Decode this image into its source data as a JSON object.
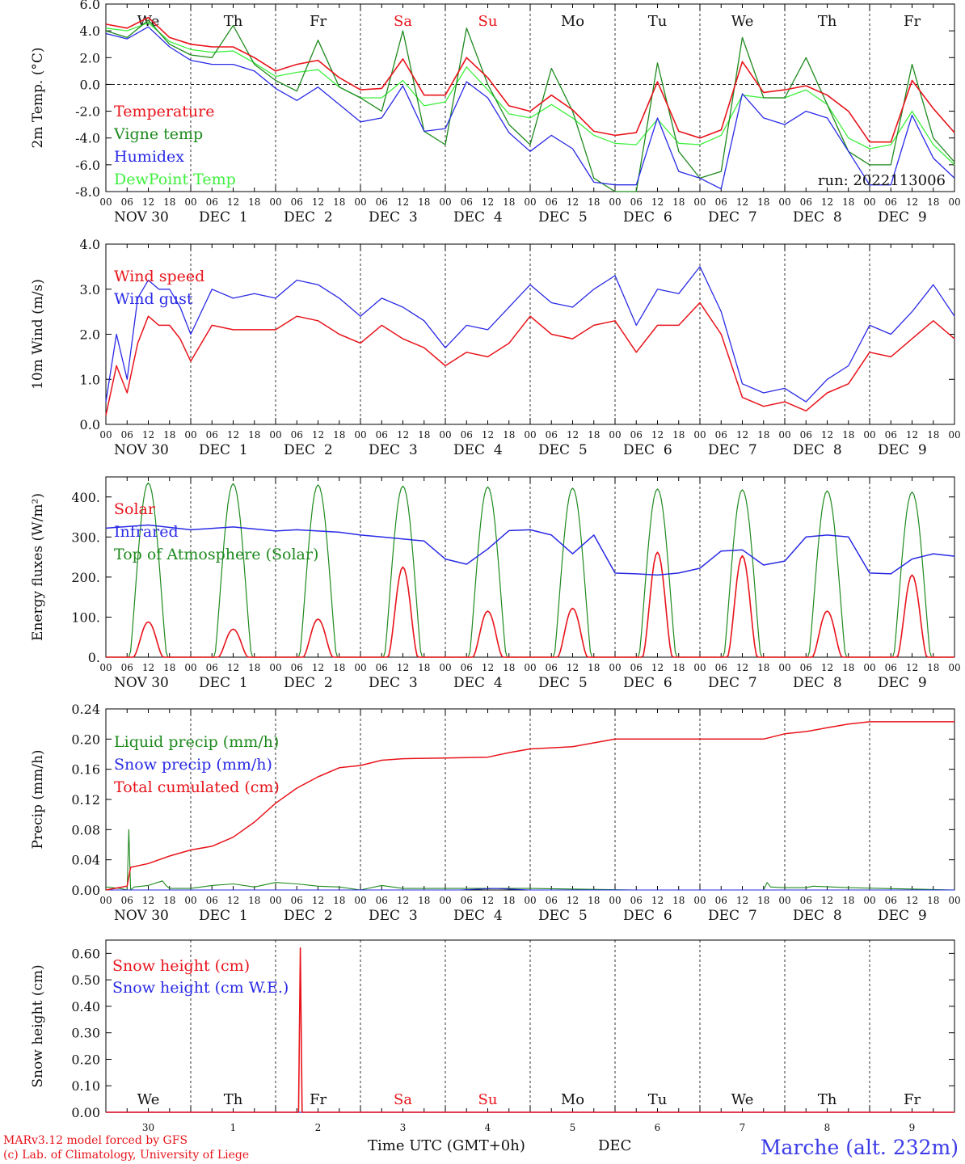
{
  "footer": {
    "model_line": "MARv3.12 model forced by GFS",
    "credit_line": "(c) Lab. of Climatology, University of Liege",
    "time_axis_label": "Time UTC (GMT+0h)",
    "month_label": "DEC",
    "station": "Marche (alt. 232m)"
  },
  "days": [
    {
      "weekday": "We",
      "date_label": "NOV 30",
      "day_num": "30",
      "weekend": false
    },
    {
      "weekday": "Th",
      "date_label": "DEC  1",
      "day_num": "1",
      "weekend": false
    },
    {
      "weekday": "Fr",
      "date_label": "DEC  2",
      "day_num": "2",
      "weekend": false
    },
    {
      "weekday": "Sa",
      "date_label": "DEC  3",
      "day_num": "3",
      "weekend": true
    },
    {
      "weekday": "Su",
      "date_label": "DEC  4",
      "day_num": "4",
      "weekend": true
    },
    {
      "weekday": "Mo",
      "date_label": "DEC  5",
      "day_num": "5",
      "weekend": false
    },
    {
      "weekday": "Tu",
      "date_label": "DEC  6",
      "day_num": "6",
      "weekend": false
    },
    {
      "weekday": "We",
      "date_label": "DEC  7",
      "day_num": "7",
      "weekend": false
    },
    {
      "weekday": "Th",
      "date_label": "DEC  8",
      "day_num": "8",
      "weekend": false
    },
    {
      "weekday": "Fr",
      "date_label": "DEC  9",
      "day_num": "9",
      "weekend": false
    }
  ],
  "hour_ticks": [
    "00",
    "06",
    "12",
    "18"
  ],
  "colors": {
    "red": "#e8141b",
    "green": "#1e8a1e",
    "blue": "#2a2ae6",
    "light_green": "#3ef03e",
    "station_blue": "#3a3ae8"
  },
  "chart_data": [
    {
      "type": "line",
      "ylabel": "2m Temp. (°C)",
      "ylim": [
        -8,
        6
      ],
      "yticks": [
        "-8.0",
        "-6.0",
        "-4.0",
        "-2.0",
        "0.0",
        "2.0",
        "4.0",
        "6.0"
      ],
      "x_unit": "hours since 2022-11-30 00 UTC",
      "run_label": "run: 2022113006",
      "zero_line": true,
      "series": [
        {
          "name": "Temperature",
          "color": "red",
          "x": [
            0,
            6,
            12,
            18,
            24,
            30,
            36,
            42,
            48,
            54,
            60,
            66,
            72,
            78,
            84,
            90,
            96,
            102,
            108,
            114,
            120,
            126,
            132,
            138,
            144,
            150,
            156,
            162,
            168,
            174,
            180,
            186,
            192,
            198,
            204,
            210,
            216,
            222,
            228,
            234,
            240
          ],
          "y": [
            4.5,
            4.2,
            5.0,
            3.5,
            3.0,
            2.8,
            2.8,
            2.0,
            1.0,
            1.5,
            1.8,
            0.5,
            -0.4,
            -0.3,
            1.9,
            -0.8,
            -0.8,
            2.0,
            0.5,
            -1.6,
            -2.0,
            -0.8,
            -1.9,
            -3.5,
            -3.8,
            -3.6,
            0.2,
            -3.5,
            -4.0,
            -3.4,
            1.7,
            -0.6,
            -0.4,
            -0.1,
            -0.8,
            -2.0,
            -4.3,
            -4.3,
            0.3,
            -1.8,
            -3.6
          ]
        },
        {
          "name": "Vigne temp",
          "color": "green",
          "x": [
            0,
            6,
            12,
            18,
            24,
            30,
            36,
            42,
            48,
            54,
            60,
            66,
            72,
            78,
            84,
            90,
            96,
            102,
            108,
            114,
            120,
            126,
            132,
            138,
            144,
            150,
            156,
            162,
            168,
            174,
            180,
            186,
            192,
            198,
            204,
            210,
            216,
            222,
            228,
            234,
            240
          ],
          "y": [
            4.0,
            3.5,
            4.8,
            3.0,
            2.2,
            2.0,
            4.4,
            1.5,
            0.3,
            -0.5,
            3.3,
            -0.2,
            -1.0,
            -2.0,
            4.0,
            -3.5,
            -4.5,
            4.2,
            0.0,
            -3.0,
            -4.5,
            1.2,
            -2.0,
            -7.0,
            -8.0,
            -8.0,
            1.6,
            -5.0,
            -7.0,
            -6.5,
            3.5,
            -1.0,
            -1.0,
            2.0,
            -1.5,
            -5.0,
            -6.0,
            -6.0,
            1.5,
            -4.0,
            -5.8
          ]
        },
        {
          "name": "Humidex",
          "color": "blue",
          "x": [
            0,
            6,
            12,
            18,
            24,
            30,
            36,
            42,
            48,
            54,
            60,
            66,
            72,
            78,
            84,
            90,
            96,
            102,
            108,
            114,
            120,
            126,
            132,
            138,
            144,
            150,
            156,
            162,
            168,
            174,
            180,
            186,
            192,
            198,
            204,
            210,
            216,
            222,
            228,
            234,
            240
          ],
          "y": [
            3.8,
            3.4,
            4.3,
            2.8,
            1.8,
            1.5,
            1.5,
            1.0,
            -0.3,
            -1.2,
            -0.2,
            -1.5,
            -2.8,
            -2.5,
            -0.1,
            -3.5,
            -3.3,
            0.2,
            -1.0,
            -3.6,
            -5.0,
            -3.8,
            -4.8,
            -7.3,
            -7.5,
            -7.5,
            -2.5,
            -6.5,
            -7.0,
            -7.8,
            -0.7,
            -2.5,
            -3.0,
            -2.0,
            -2.5,
            -5.0,
            -7.5,
            -7.5,
            -2.3,
            -5.5,
            -7.0
          ]
        },
        {
          "name": "DewPoint Temp",
          "color": "light_green",
          "x": [
            0,
            6,
            12,
            18,
            24,
            30,
            36,
            42,
            48,
            54,
            60,
            66,
            72,
            78,
            84,
            90,
            96,
            102,
            108,
            114,
            120,
            126,
            132,
            138,
            144,
            150,
            156,
            162,
            168,
            174,
            180,
            186,
            192,
            198,
            204,
            210,
            216,
            222,
            228,
            234,
            240
          ],
          "y": [
            4.2,
            4.0,
            4.6,
            3.2,
            2.6,
            2.4,
            2.5,
            1.6,
            0.6,
            0.9,
            1.1,
            -0.2,
            -1.0,
            -1.0,
            0.3,
            -1.6,
            -1.3,
            1.3,
            -0.4,
            -2.2,
            -2.5,
            -1.5,
            -2.5,
            -3.8,
            -4.4,
            -4.5,
            -2.6,
            -4.4,
            -4.5,
            -3.8,
            -0.8,
            -1.0,
            -1.0,
            -0.4,
            -1.5,
            -4.0,
            -4.8,
            -4.5,
            -2.0,
            -4.5,
            -6.0
          ]
        }
      ]
    },
    {
      "type": "line",
      "ylabel": "10m Wind (m/s)",
      "ylim": [
        0,
        4
      ],
      "yticks": [
        "0.0",
        "1.0",
        "2.0",
        "3.0",
        "4.0"
      ],
      "series": [
        {
          "name": "Wind speed",
          "color": "red",
          "x": [
            0,
            3,
            6,
            9,
            12,
            15,
            18,
            21,
            24,
            30,
            36,
            42,
            48,
            54,
            60,
            66,
            72,
            78,
            84,
            90,
            96,
            102,
            108,
            114,
            120,
            126,
            132,
            138,
            144,
            150,
            156,
            162,
            168,
            174,
            180,
            186,
            192,
            198,
            204,
            210,
            216,
            222,
            228,
            234,
            240
          ],
          "y": [
            0.2,
            1.3,
            0.7,
            1.8,
            2.4,
            2.2,
            2.2,
            1.9,
            1.4,
            2.2,
            2.1,
            2.1,
            2.1,
            2.4,
            2.3,
            2.0,
            1.8,
            2.2,
            1.9,
            1.7,
            1.3,
            1.6,
            1.5,
            1.8,
            2.4,
            2.0,
            1.9,
            2.2,
            2.3,
            1.6,
            2.2,
            2.2,
            2.7,
            2.0,
            0.6,
            0.4,
            0.5,
            0.3,
            0.7,
            0.9,
            1.6,
            1.5,
            1.9,
            2.3,
            1.9
          ]
        },
        {
          "name": "Wind gust",
          "color": "blue",
          "x": [
            0,
            3,
            6,
            9,
            12,
            15,
            18,
            21,
            24,
            30,
            36,
            42,
            48,
            54,
            60,
            66,
            72,
            78,
            84,
            90,
            96,
            102,
            108,
            114,
            120,
            126,
            132,
            138,
            144,
            150,
            156,
            162,
            168,
            174,
            180,
            186,
            192,
            198,
            204,
            210,
            216,
            222,
            228,
            234,
            240
          ],
          "y": [
            0.5,
            2.0,
            1.0,
            2.8,
            3.2,
            3.0,
            3.0,
            2.6,
            2.0,
            3.0,
            2.8,
            2.9,
            2.8,
            3.2,
            3.1,
            2.8,
            2.4,
            2.8,
            2.6,
            2.3,
            1.7,
            2.2,
            2.1,
            2.6,
            3.1,
            2.7,
            2.6,
            3.0,
            3.3,
            2.2,
            3.0,
            2.9,
            3.5,
            2.5,
            0.9,
            0.7,
            0.8,
            0.5,
            1.0,
            1.3,
            2.2,
            2.0,
            2.5,
            3.1,
            2.4
          ]
        }
      ]
    },
    {
      "type": "line",
      "ylabel": "Energy fluxes (W/m²)",
      "ylim": [
        0,
        450
      ],
      "yticks": [
        "0.",
        "100.",
        "200.",
        "300.",
        "400."
      ],
      "solar_day_peaks": [
        88,
        70,
        95,
        225,
        115,
        122,
        262,
        253,
        115,
        205
      ],
      "toa_day_peaks": [
        435,
        433,
        430,
        427,
        425,
        422,
        420,
        418,
        415,
        412
      ],
      "series": [
        {
          "name": "Solar",
          "color": "red"
        },
        {
          "name": "Infrared",
          "color": "blue",
          "x": [
            0,
            12,
            24,
            36,
            48,
            54,
            60,
            66,
            72,
            78,
            84,
            90,
            96,
            102,
            108,
            114,
            120,
            126,
            132,
            138,
            144,
            150,
            156,
            162,
            168,
            174,
            180,
            186,
            192,
            198,
            204,
            210,
            216,
            222,
            228,
            234,
            240
          ],
          "y": [
            322,
            330,
            318,
            325,
            315,
            318,
            315,
            312,
            305,
            300,
            295,
            290,
            245,
            232,
            270,
            316,
            318,
            305,
            258,
            305,
            210,
            208,
            205,
            210,
            222,
            265,
            268,
            230,
            240,
            300,
            305,
            300,
            210,
            208,
            245,
            258,
            252
          ]
        },
        {
          "name": "Top of Atmosphere (Solar)",
          "color": "green"
        }
      ]
    },
    {
      "type": "line",
      "ylabel": "Precip (mm/h)",
      "ylim": [
        0,
        0.24
      ],
      "yticks": [
        "0.00",
        "0.04",
        "0.08",
        "0.12",
        "0.16",
        "0.20",
        "0.24"
      ],
      "series": [
        {
          "name": "Liquid precip (mm/h)",
          "color": "green",
          "x": [
            0,
            4,
            6,
            6.5,
            7,
            8,
            12,
            16,
            17,
            18,
            24,
            30,
            36,
            42,
            48,
            54,
            60,
            66,
            72,
            78,
            84,
            120,
            150,
            186,
            187,
            188,
            192,
            198,
            200,
            210,
            240
          ],
          "y": [
            0.004,
            0.002,
            0.0,
            0.08,
            0.0,
            0.004,
            0.006,
            0.012,
            0.006,
            0.002,
            0.002,
            0.006,
            0.008,
            0.004,
            0.01,
            0.008,
            0.005,
            0.004,
            0.0,
            0.006,
            0.002,
            0.002,
            0.0,
            0.0,
            0.01,
            0.004,
            0.003,
            0.003,
            0.005,
            0.003,
            0.0
          ]
        },
        {
          "name": "Snow precip (mm/h)",
          "color": "blue",
          "x": [
            0,
            100,
            110,
            120,
            240
          ],
          "y": [
            0,
            0,
            0.002,
            0,
            0
          ]
        },
        {
          "name": "Total cumulated (cm)",
          "color": "red",
          "x": [
            0,
            6,
            7,
            12,
            18,
            24,
            30,
            36,
            42,
            48,
            54,
            60,
            66,
            72,
            78,
            84,
            96,
            108,
            114,
            120,
            132,
            144,
            156,
            168,
            180,
            186,
            192,
            198,
            204,
            210,
            216,
            222,
            228,
            240
          ],
          "y": [
            0.0,
            0.005,
            0.03,
            0.035,
            0.045,
            0.053,
            0.058,
            0.07,
            0.09,
            0.115,
            0.135,
            0.15,
            0.162,
            0.165,
            0.172,
            0.174,
            0.175,
            0.176,
            0.182,
            0.187,
            0.19,
            0.2,
            0.2,
            0.2,
            0.2,
            0.2,
            0.207,
            0.21,
            0.215,
            0.22,
            0.223,
            0.223,
            0.223,
            0.223
          ]
        }
      ]
    },
    {
      "type": "line",
      "ylabel": "Snow height (cm)",
      "ylim": [
        0,
        0.65
      ],
      "yticks": [
        "0.00",
        "0.10",
        "0.20",
        "0.30",
        "0.40",
        "0.50",
        "0.60"
      ],
      "series": [
        {
          "name": "Snow height (cm)",
          "color": "red",
          "x": [
            0,
            54.5,
            55,
            55.5,
            240
          ],
          "y": [
            0,
            0,
            0.62,
            0,
            0
          ]
        },
        {
          "name": "Snow height (cm W.E.)",
          "color": "blue",
          "x": [
            0,
            240
          ],
          "y": [
            0,
            0
          ]
        }
      ]
    }
  ]
}
